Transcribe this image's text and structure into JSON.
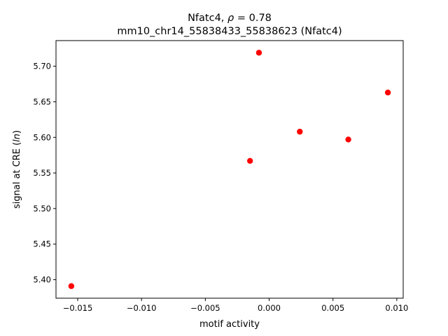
{
  "chart_data": {
    "type": "scatter",
    "title_line1_prefix": "Nfatc4, ",
    "title_rho_symbol": "ρ",
    "title_rho_value": " = 0.78",
    "title_line2": "mm10_chr14_55838433_55838623 (Nfatc4)",
    "xlabel": "motif activity",
    "ylabel_prefix": "signal at CRE (",
    "ylabel_italic": "ln",
    "ylabel_suffix": ")",
    "xlim": [
      -0.0167,
      0.0105
    ],
    "ylim": [
      5.374,
      5.736
    ],
    "x_ticks": [
      -0.015,
      -0.01,
      -0.005,
      0.0,
      0.005,
      0.01
    ],
    "x_tick_labels": [
      "−0.015",
      "−0.010",
      "−0.005",
      "0.000",
      "0.005",
      "0.010"
    ],
    "y_ticks": [
      5.4,
      5.45,
      5.5,
      5.55,
      5.6,
      5.65,
      5.7
    ],
    "y_tick_labels": [
      "5.40",
      "5.45",
      "5.50",
      "5.55",
      "5.60",
      "5.65",
      "5.70"
    ],
    "grid": false,
    "marker_color": "#ff0000",
    "points": [
      {
        "x": -0.0155,
        "y": 5.391
      },
      {
        "x": -0.0015,
        "y": 5.567
      },
      {
        "x": -0.0008,
        "y": 5.719
      },
      {
        "x": 0.0024,
        "y": 5.608
      },
      {
        "x": 0.0062,
        "y": 5.597
      },
      {
        "x": 0.0093,
        "y": 5.663
      }
    ]
  }
}
